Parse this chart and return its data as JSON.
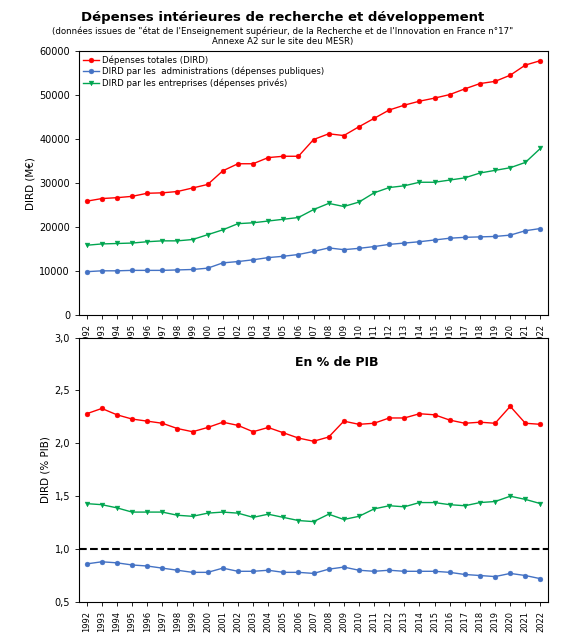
{
  "title": "Dépenses intérieures de recherche et développement",
  "subtitle_line1": "(données issues de \"état de l'Enseignement supérieur, de la Recherche et de l'Innovation en France n°17\"",
  "subtitle_line2": "Annexe A2 sur le site deu MESR)",
  "years": [
    1992,
    1993,
    1994,
    1995,
    1996,
    1997,
    1998,
    1999,
    2000,
    2001,
    2002,
    2003,
    2004,
    2005,
    2006,
    2007,
    2008,
    2009,
    2010,
    2011,
    2012,
    2013,
    2014,
    2015,
    2016,
    2017,
    2018,
    2019,
    2020,
    2021,
    2022
  ],
  "dird_total": [
    25900,
    26500,
    26700,
    27000,
    27700,
    27800,
    28100,
    28900,
    29700,
    32800,
    34400,
    34400,
    35800,
    36100,
    36100,
    39900,
    41200,
    40800,
    42800,
    44700,
    46600,
    47700,
    48600,
    49300,
    50100,
    51400,
    52600,
    53100,
    54500,
    56800,
    57800
  ],
  "dird_admin": [
    9900,
    10100,
    10100,
    10200,
    10200,
    10200,
    10300,
    10400,
    10700,
    11900,
    12200,
    12600,
    13100,
    13400,
    13800,
    14500,
    15300,
    14900,
    15200,
    15600,
    16100,
    16400,
    16700,
    17100,
    17500,
    17700,
    17800,
    17900,
    18200,
    19200,
    19700
  ],
  "dird_entrep": [
    15900,
    16200,
    16300,
    16400,
    16700,
    16900,
    16900,
    17200,
    18300,
    19400,
    20800,
    21000,
    21400,
    21800,
    22200,
    24000,
    25400,
    24700,
    25700,
    27800,
    29000,
    29400,
    30200,
    30200,
    30700,
    31200,
    32300,
    32900,
    33500,
    34700,
    37900
  ],
  "pib_total": [
    2.28,
    2.33,
    2.27,
    2.23,
    2.21,
    2.19,
    2.14,
    2.11,
    2.15,
    2.2,
    2.17,
    2.11,
    2.15,
    2.1,
    2.05,
    2.02,
    2.06,
    2.21,
    2.18,
    2.19,
    2.24,
    2.24,
    2.28,
    2.27,
    2.22,
    2.19,
    2.2,
    2.19,
    2.35,
    2.19,
    2.18
  ],
  "pib_admin": [
    0.86,
    0.88,
    0.87,
    0.85,
    0.84,
    0.82,
    0.8,
    0.78,
    0.78,
    0.82,
    0.79,
    0.79,
    0.8,
    0.78,
    0.78,
    0.77,
    0.81,
    0.83,
    0.8,
    0.79,
    0.8,
    0.79,
    0.79,
    0.79,
    0.78,
    0.76,
    0.75,
    0.74,
    0.77,
    0.75,
    0.72
  ],
  "pib_entrep": [
    1.43,
    1.42,
    1.39,
    1.35,
    1.35,
    1.35,
    1.32,
    1.31,
    1.34,
    1.35,
    1.34,
    1.3,
    1.33,
    1.3,
    1.27,
    1.26,
    1.33,
    1.28,
    1.31,
    1.38,
    1.41,
    1.4,
    1.44,
    1.44,
    1.42,
    1.41,
    1.44,
    1.45,
    1.5,
    1.47,
    1.43
  ],
  "color_total": "#ff0000",
  "color_admin": "#4472c4",
  "color_entrep": "#00a550",
  "legend1": "Dépenses totales (DIRD)",
  "legend2": "DIRD par les  administrations (dépenses publiques)",
  "legend3": "DIRD par les entreprises (dépenses privés)",
  "ylabel1": "DIRD (M€)",
  "ylabel2": "DIRD (% PIB)",
  "title2": "En % de PIB",
  "ylim1": [
    0,
    60000
  ],
  "ylim2": [
    0.5,
    3.0
  ],
  "yticks1": [
    0,
    10000,
    20000,
    30000,
    40000,
    50000,
    60000
  ],
  "yticks2": [
    0.5,
    1.0,
    1.5,
    2.0,
    2.5,
    3.0
  ],
  "background": "#ffffff"
}
